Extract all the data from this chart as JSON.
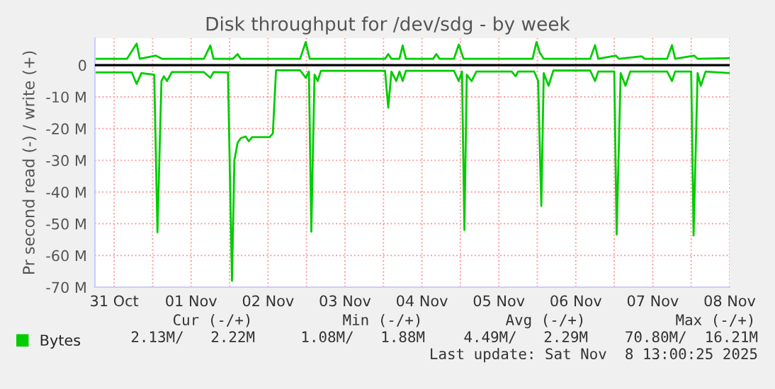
{
  "chart_data": {
    "type": "line",
    "title": "Disk throughput for /dev/sdg - by week",
    "ylabel": "Pr second read (-) / write (+)",
    "xlim": [
      "2025-10-31T06:00",
      "2025-11-08T12:00"
    ],
    "xticks": [
      {
        "value": "2025-10-31T12:00",
        "label": "31 Oct"
      },
      {
        "value": "2025-11-01T00:00",
        "label": null
      },
      {
        "value": "2025-11-01T12:00",
        "label": "01 Nov"
      },
      {
        "value": "2025-11-02T00:00",
        "label": null
      },
      {
        "value": "2025-11-02T12:00",
        "label": "02 Nov"
      },
      {
        "value": "2025-11-03T00:00",
        "label": null
      },
      {
        "value": "2025-11-03T12:00",
        "label": "03 Nov"
      },
      {
        "value": "2025-11-04T00:00",
        "label": null
      },
      {
        "value": "2025-11-04T12:00",
        "label": "04 Nov"
      },
      {
        "value": "2025-11-05T00:00",
        "label": null
      },
      {
        "value": "2025-11-05T12:00",
        "label": "05 Nov"
      },
      {
        "value": "2025-11-06T00:00",
        "label": null
      },
      {
        "value": "2025-11-06T12:00",
        "label": "06 Nov"
      },
      {
        "value": "2025-11-07T00:00",
        "label": null
      },
      {
        "value": "2025-11-07T12:00",
        "label": "07 Nov"
      },
      {
        "value": "2025-11-08T00:00",
        "label": null
      },
      {
        "value": "2025-11-08T12:00",
        "label": "08 Nov"
      }
    ],
    "ylim": [
      -70,
      8.5
    ],
    "yticks": [
      0,
      {
        "value": -10,
        "label": "-10 M"
      },
      {
        "value": -20,
        "label": "-20 M"
      },
      {
        "value": -30,
        "label": "-30 M"
      },
      {
        "value": -40,
        "label": "-40 M"
      },
      {
        "value": -50,
        "label": "-50 M"
      },
      {
        "value": -60,
        "label": "-60 M"
      },
      {
        "value": -70,
        "label": "-70 M"
      }
    ],
    "grid": true,
    "legend": "bottom left",
    "ref_lines": [
      {
        "axis": "y",
        "value": 0,
        "color": "#000000"
      }
    ],
    "series": [
      {
        "name": "Bytes",
        "color": "#00cc00",
        "x": [
          "2025-10-31T06:00",
          "2025-10-31T17:30",
          "2025-10-31T19:00",
          "2025-10-31T20:30",
          "2025-11-01T00:30",
          "2025-11-01T01:30",
          "2025-11-01T02:45",
          "2025-11-01T03:30",
          "2025-11-01T04:30",
          "2025-11-01T06:00",
          "2025-11-01T16:00",
          "2025-11-01T18:00",
          "2025-11-01T19:00",
          "2025-11-01T23:30",
          "2025-11-02T00:45",
          "2025-11-02T01:30",
          "2025-11-02T02:30",
          "2025-11-02T03:30",
          "2025-11-02T05:00",
          "2025-11-02T06:00",
          "2025-11-02T07:00",
          "2025-11-02T12:30",
          "2025-11-02T13:30",
          "2025-11-02T14:30",
          "2025-11-02T22:00",
          "2025-11-02T23:45",
          "2025-11-03T00:45",
          "2025-11-03T01:30",
          "2025-11-03T02:30",
          "2025-11-03T03:30",
          "2025-11-03T04:30",
          "2025-11-04T00:30",
          "2025-11-04T01:30",
          "2025-11-04T02:30",
          "2025-11-04T04:00",
          "2025-11-04T05:00",
          "2025-11-04T06:00",
          "2025-11-04T07:00",
          "2025-11-04T22:00",
          "2025-11-04T23:30",
          "2025-11-05T00:30",
          "2025-11-05T01:15",
          "2025-11-05T02:00",
          "2025-11-05T03:30",
          "2025-11-05T05:00",
          "2025-11-05T16:00",
          "2025-11-05T17:15",
          "2025-11-05T18:00",
          "2025-11-05T23:00",
          "2025-11-06T00:15",
          "2025-11-06T01:15",
          "2025-11-06T02:00",
          "2025-11-06T03:30",
          "2025-11-06T05:00",
          "2025-11-06T16:30",
          "2025-11-06T18:00",
          "2025-11-06T19:00",
          "2025-11-07T00:00",
          "2025-11-07T00:45",
          "2025-11-07T02:00",
          "2025-11-07T03:30",
          "2025-11-07T05:00",
          "2025-11-07T16:30",
          "2025-11-07T18:00",
          "2025-11-07T19:00",
          "2025-11-08T00:00",
          "2025-11-08T00:45",
          "2025-11-08T02:00",
          "2025-11-08T03:00",
          "2025-11-08T04:30",
          "2025-11-08T12:00"
        ],
        "values": [
          -2.3,
          -2.3,
          -5.9,
          -2.5,
          -3,
          -52.7,
          -5,
          -3.5,
          -5,
          -2.2,
          -2.2,
          -4,
          -2.2,
          -2.3,
          -68,
          -30,
          -24.5,
          -23,
          -22.5,
          -24,
          -22.7,
          -22.7,
          -21.5,
          -1.6,
          -1.6,
          -4,
          -2,
          -52.5,
          -3,
          -5,
          -1.8,
          -1.8,
          -13.4,
          -2,
          -5,
          -2,
          -5,
          -1.8,
          -1.8,
          -5,
          -2,
          -52,
          -3,
          -5,
          -2,
          -2,
          -3.5,
          -2,
          -2,
          -5,
          -44.4,
          -2.5,
          -6.5,
          -1.7,
          -1.7,
          -5,
          -2,
          -2,
          -53.4,
          -2.5,
          -6.5,
          -2,
          -2,
          -5,
          -2,
          -2,
          -53.7,
          -2.5,
          -6.5,
          -2,
          -2.5
        ]
      },
      {
        "color": "#00cc00",
        "x": [
          "2025-10-31T06:00",
          "2025-10-31T16:00",
          "2025-10-31T19:00",
          "2025-10-31T20:00",
          "2025-11-01T01:00",
          "2025-11-01T03:00",
          "2025-11-01T16:00",
          "2025-11-01T18:00",
          "2025-11-01T19:00",
          "2025-11-02T01:00",
          "2025-11-02T02:30",
          "2025-11-02T03:30",
          "2025-11-02T22:00",
          "2025-11-02T23:45",
          "2025-11-03T01:00",
          "2025-11-04T00:30",
          "2025-11-04T01:30",
          "2025-11-04T02:30",
          "2025-11-04T05:00",
          "2025-11-04T06:00",
          "2025-11-04T07:00",
          "2025-11-04T15:30",
          "2025-11-04T16:30",
          "2025-11-04T17:30",
          "2025-11-04T22:00",
          "2025-11-04T23:30",
          "2025-11-05T01:00",
          "2025-11-05T22:30",
          "2025-11-05T23:45",
          "2025-11-06T00:45",
          "2025-11-06T02:00",
          "2025-11-06T16:30",
          "2025-11-06T18:00",
          "2025-11-06T19:00",
          "2025-11-07T00:30",
          "2025-11-07T01:30",
          "2025-11-07T08:30",
          "2025-11-07T09:30",
          "2025-11-07T16:30",
          "2025-11-07T18:00",
          "2025-11-07T19:00",
          "2025-11-08T01:00",
          "2025-11-08T02:00",
          "2025-11-08T12:00"
        ],
        "values": [
          2.0,
          2.0,
          6.8,
          2.0,
          3.0,
          2.0,
          2.0,
          6.2,
          2.0,
          2.0,
          3.5,
          2.0,
          2.0,
          7.3,
          2.0,
          2.0,
          3.5,
          2.0,
          2.0,
          6.2,
          2.0,
          2.0,
          3.5,
          2.0,
          2.0,
          6.5,
          2.0,
          2.0,
          7.3,
          4.0,
          2.0,
          2.0,
          6.3,
          2.0,
          3.0,
          2.0,
          2.8,
          2.0,
          2.0,
          6.3,
          2.0,
          3.0,
          2.0,
          2.2
        ]
      }
    ],
    "annotations": [
      "Cur (-/+)",
      "Min (-/+)",
      "Avg (-/+)",
      "Max (-/+)",
      "2.13M/   2.22M",
      "1.08M/   1.88M",
      "4.49M/   2.29M",
      "70.80M/  16.21M",
      "Last update: Sat Nov  8 13:00:25 2025"
    ]
  }
}
